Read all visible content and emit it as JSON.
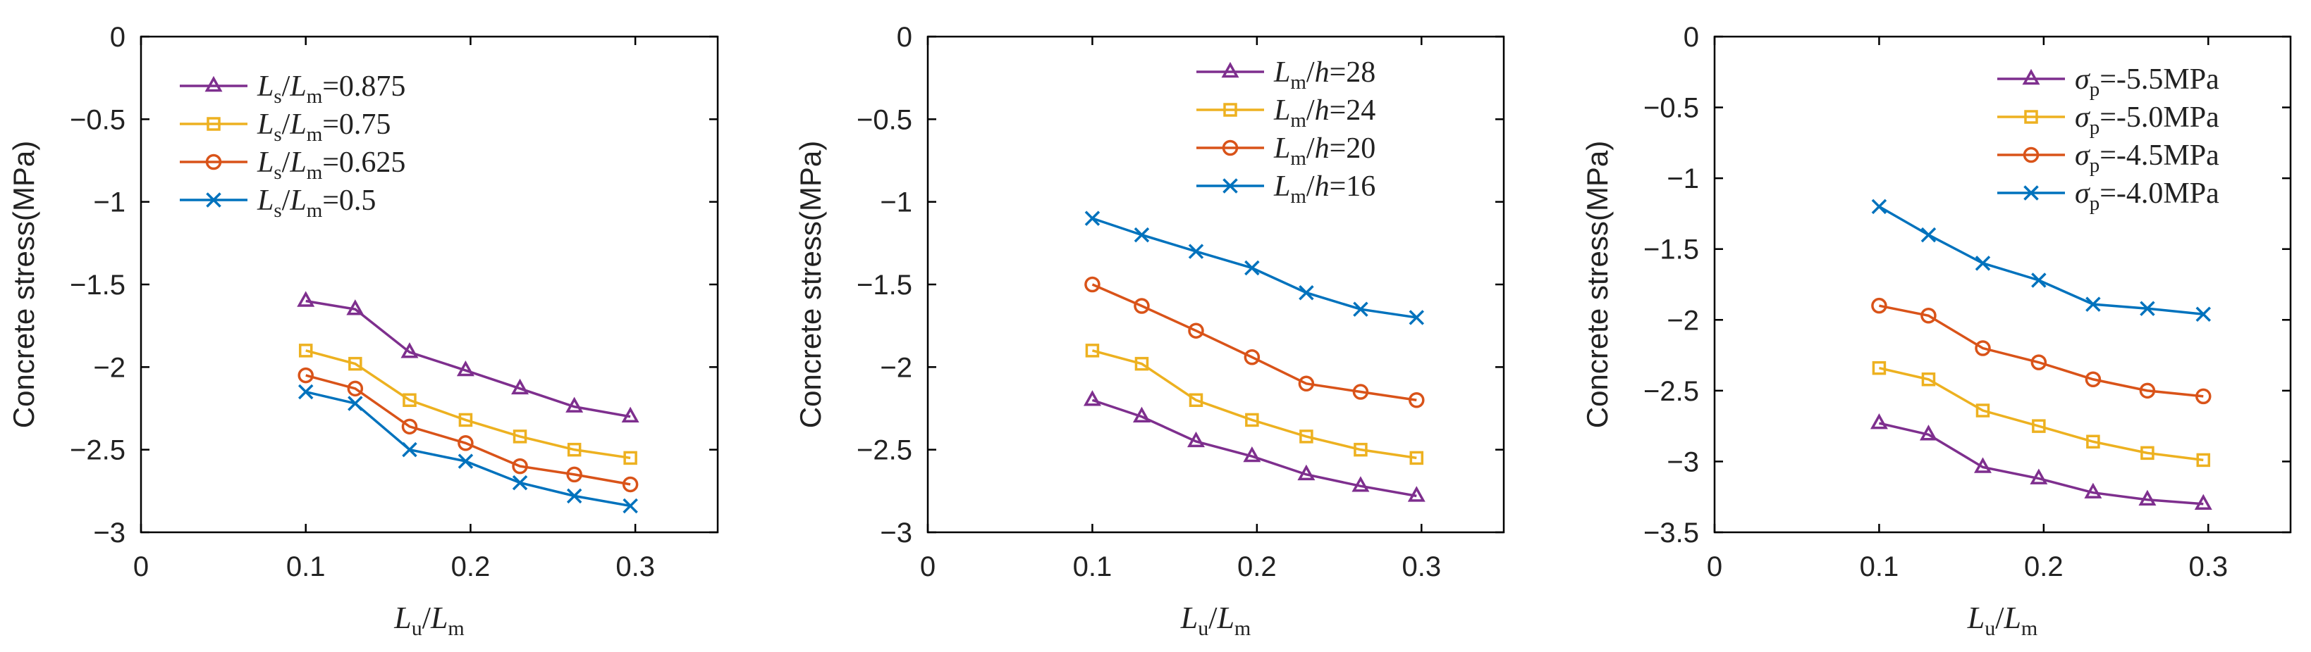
{
  "chart_data": [
    {
      "type": "line",
      "x": [
        0.1,
        0.13,
        0.163,
        0.197,
        0.23,
        0.263,
        0.297
      ],
      "xlim": [
        0,
        0.35
      ],
      "xticks": [
        "0",
        "0.1",
        "0.2",
        "0.3"
      ],
      "xtick_values": [
        0,
        0.1,
        0.2,
        0.3
      ],
      "ylim": [
        -3,
        0
      ],
      "yticks": [
        "0",
        "-0.5",
        "-1",
        "-1.5",
        "-2",
        "-2.5",
        "-3"
      ],
      "ytick_values": [
        0,
        -0.5,
        -1,
        -1.5,
        -2,
        -2.5,
        -3
      ],
      "ylabel": "Concrete stress(MPa)",
      "xlabel": {
        "main": "L",
        "sub1": "u",
        "sep": "/",
        "main2": "L",
        "sub2": "m"
      },
      "legend_position": "top-left",
      "series": [
        {
          "name": "Ls/Lm=0.875",
          "label": {
            "a": "L",
            "asub": "s",
            "b": "/",
            "c": "L",
            "csub": "m",
            "rest": "=0.875"
          },
          "color": "#7E2F8E",
          "marker": "triangle",
          "values": [
            -1.6,
            -1.65,
            -1.91,
            -2.02,
            -2.13,
            -2.24,
            -2.3
          ]
        },
        {
          "name": "Ls/Lm=0.75",
          "label": {
            "a": "L",
            "asub": "s",
            "b": "/",
            "c": "L",
            "csub": "m",
            "rest": "=0.75"
          },
          "color": "#EDB120",
          "marker": "square",
          "values": [
            -1.9,
            -1.98,
            -2.2,
            -2.32,
            -2.42,
            -2.5,
            -2.55
          ]
        },
        {
          "name": "Ls/Lm=0.625",
          "label": {
            "a": "L",
            "asub": "s",
            "b": "/",
            "c": "L",
            "csub": "m",
            "rest": "=0.625"
          },
          "color": "#D95319",
          "marker": "circle",
          "values": [
            -2.05,
            -2.13,
            -2.36,
            -2.46,
            -2.6,
            -2.65,
            -2.71
          ]
        },
        {
          "name": "Ls/Lm=0.5",
          "label": {
            "a": "L",
            "asub": "s",
            "b": "/",
            "c": "L",
            "csub": "m",
            "rest": "=0.5"
          },
          "color": "#0072BD",
          "marker": "x",
          "values": [
            -2.15,
            -2.22,
            -2.5,
            -2.57,
            -2.7,
            -2.78,
            -2.84
          ]
        }
      ]
    },
    {
      "type": "line",
      "x": [
        0.1,
        0.13,
        0.163,
        0.197,
        0.23,
        0.263,
        0.297
      ],
      "xlim": [
        0,
        0.35
      ],
      "xticks": [
        "0",
        "0.1",
        "0.2",
        "0.3"
      ],
      "xtick_values": [
        0,
        0.1,
        0.2,
        0.3
      ],
      "ylim": [
        -3,
        0
      ],
      "yticks": [
        "0",
        "-0.5",
        "-1",
        "-1.5",
        "-2",
        "-2.5",
        "-3"
      ],
      "ytick_values": [
        0,
        -0.5,
        -1,
        -1.5,
        -2,
        -2.5,
        -3
      ],
      "ylabel": "Concrete stress(MPa)",
      "xlabel": {
        "main": "L",
        "sub1": "u",
        "sep": "/",
        "main2": "L",
        "sub2": "m"
      },
      "legend_position": "top-right",
      "series": [
        {
          "name": "Lm/h=28",
          "label": {
            "a": "L",
            "asub": "m",
            "b": "/",
            "c": "h",
            "csub": "",
            "rest": "=28"
          },
          "color": "#7E2F8E",
          "marker": "triangle",
          "values": [
            -2.2,
            -2.3,
            -2.45,
            -2.54,
            -2.65,
            -2.72,
            -2.78
          ]
        },
        {
          "name": "Lm/h=24",
          "label": {
            "a": "L",
            "asub": "m",
            "b": "/",
            "c": "h",
            "csub": "",
            "rest": "=24"
          },
          "color": "#EDB120",
          "marker": "square",
          "values": [
            -1.9,
            -1.98,
            -2.2,
            -2.32,
            -2.42,
            -2.5,
            -2.55
          ]
        },
        {
          "name": "Lm/h=20",
          "label": {
            "a": "L",
            "asub": "m",
            "b": "/",
            "c": "h",
            "csub": "",
            "rest": "=20"
          },
          "color": "#D95319",
          "marker": "circle",
          "values": [
            -1.5,
            -1.63,
            -1.78,
            -1.94,
            -2.1,
            -2.15,
            -2.2
          ]
        },
        {
          "name": "Lm/h=16",
          "label": {
            "a": "L",
            "asub": "m",
            "b": "/",
            "c": "h",
            "csub": "",
            "rest": "=16"
          },
          "color": "#0072BD",
          "marker": "x",
          "values": [
            -1.1,
            -1.2,
            -1.3,
            -1.4,
            -1.55,
            -1.65,
            -1.7
          ]
        }
      ]
    },
    {
      "type": "line",
      "x": [
        0.1,
        0.13,
        0.163,
        0.197,
        0.23,
        0.263,
        0.297
      ],
      "xlim": [
        0,
        0.35
      ],
      "xticks": [
        "0",
        "0.1",
        "0.2",
        "0.3"
      ],
      "xtick_values": [
        0,
        0.1,
        0.2,
        0.3
      ],
      "ylim": [
        -3.5,
        0
      ],
      "yticks": [
        "0",
        "-0.5",
        "-1",
        "-1.5",
        "-2",
        "-2.5",
        "-3",
        "-3.5"
      ],
      "ytick_values": [
        0,
        -0.5,
        -1,
        -1.5,
        -2,
        -2.5,
        -3,
        -3.5
      ],
      "ylabel": "Concrete stress(MPa)",
      "xlabel": {
        "main": "L",
        "sub1": "u",
        "sep": "/",
        "main2": "L",
        "sub2": "m"
      },
      "legend_position": "top-right",
      "series": [
        {
          "name": "σp=-5.5MPa",
          "label": {
            "a": "σ",
            "asub": "p",
            "b": "",
            "c": "",
            "csub": "",
            "rest": "=-5.5MPa"
          },
          "color": "#7E2F8E",
          "marker": "triangle",
          "values": [
            -2.73,
            -2.81,
            -3.04,
            -3.12,
            -3.22,
            -3.27,
            -3.3
          ]
        },
        {
          "name": "σp=-5.0MPa",
          "label": {
            "a": "σ",
            "asub": "p",
            "b": "",
            "c": "",
            "csub": "",
            "rest": "=-5.0MPa"
          },
          "color": "#EDB120",
          "marker": "square",
          "values": [
            -2.34,
            -2.42,
            -2.64,
            -2.75,
            -2.86,
            -2.94,
            -2.99
          ]
        },
        {
          "name": "σp=-4.5MPa",
          "label": {
            "a": "σ",
            "asub": "p",
            "b": "",
            "c": "",
            "csub": "",
            "rest": "=-4.5MPa"
          },
          "color": "#D95319",
          "marker": "circle",
          "values": [
            -1.9,
            -1.97,
            -2.2,
            -2.3,
            -2.42,
            -2.5,
            -2.54
          ]
        },
        {
          "name": "σp=-4.0MPa",
          "label": {
            "a": "σ",
            "asub": "p",
            "b": "",
            "c": "",
            "csub": "",
            "rest": "=-4.0MPa"
          },
          "color": "#0072BD",
          "marker": "x",
          "values": [
            -1.2,
            -1.4,
            -1.6,
            -1.72,
            -1.89,
            -1.92,
            -1.96
          ]
        }
      ]
    }
  ]
}
